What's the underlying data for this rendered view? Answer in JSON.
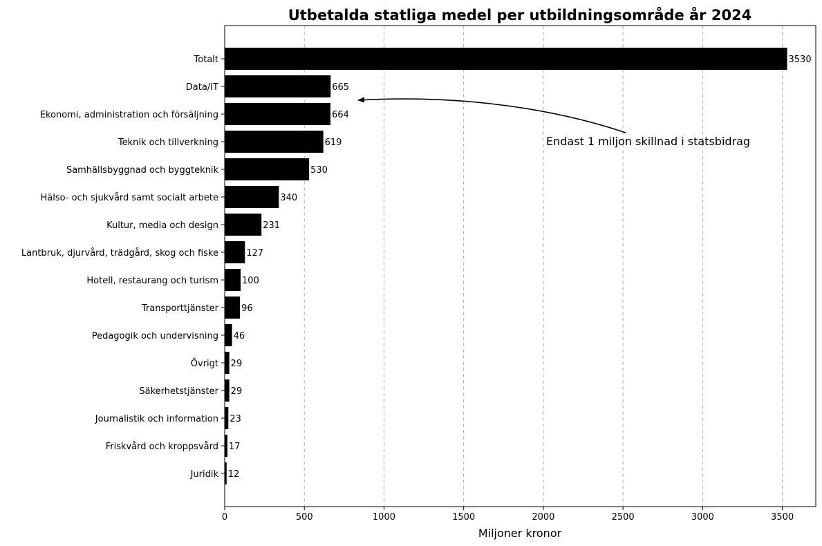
{
  "chart_data": {
    "type": "bar",
    "orientation": "horizontal",
    "title": "Utbetalda statliga medel per utbildningsområde år 2024",
    "xlabel": "Miljoner kronor",
    "ylabel": "",
    "xlim": [
      0,
      3710
    ],
    "xticks": [
      0,
      500,
      1000,
      1500,
      2000,
      2500,
      3000,
      3500
    ],
    "grid": "x-dashed",
    "bar_color": "#000000",
    "categories": [
      "Totalt",
      "Data/IT",
      "Ekonomi, administration och försäljning",
      "Teknik och tillverkning",
      "Samhällsbyggnad och byggteknik",
      "Hälso- och sjukvård samt socialt arbete",
      "Kultur, media och design",
      "Lantbruk, djurvård, trädgård, skog och fiske",
      "Hotell, restaurang och turism",
      "Transporttjänster",
      "Pedagogik och undervisning",
      "Övrigt",
      "Säkerhetstjänster",
      "Journalistik och information",
      "Friskvård och kroppsvård",
      "Juridik"
    ],
    "values": [
      3530,
      665,
      664,
      619,
      530,
      340,
      231,
      127,
      100,
      96,
      46,
      29,
      29,
      23,
      17,
      12
    ],
    "annotation": {
      "text": "Endast 1 miljon skillnad i statsbidrag",
      "points_to": "Ekonomi, administration och försäljning"
    }
  }
}
